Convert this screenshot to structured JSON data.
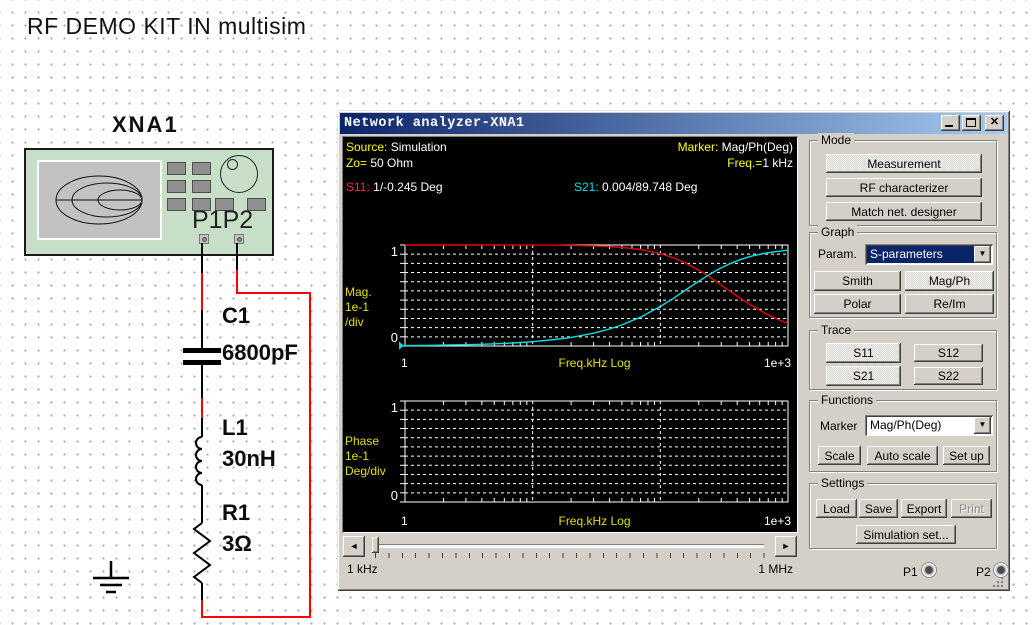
{
  "page": {
    "title": "RF DEMO KIT IN multisim"
  },
  "icons": {
    "dropdown": "▼",
    "arrow_left": "◄",
    "arrow_right": "►",
    "close": "✕"
  },
  "colors": {
    "titlebar_gradient": [
      "#0a246a",
      "#a6caf0"
    ],
    "panel_gray": "#d4d0c8",
    "info_yellow": "#ffff00",
    "axis_yellow": "#e0e000",
    "s11_red": "#ff2a2a",
    "s21_cyan": "#00e1e1",
    "wire_red": "#ff0000",
    "instrument_green": "#c7dfc7"
  },
  "schematic": {
    "instrument_ref": "XNA1",
    "ports_label": "P1P2",
    "components": [
      {
        "ref": "C1",
        "value": "6800pF"
      },
      {
        "ref": "L1",
        "value": "30nH"
      },
      {
        "ref": "R1",
        "value": "3Ω"
      }
    ]
  },
  "window": {
    "title": "Network analyzer-XNA1",
    "info": {
      "source_label": "Source:",
      "source_value": "Simulation",
      "marker_label": "Marker:",
      "marker_value": "Mag/Ph(Deg)",
      "zo_label": "Zo=",
      "zo_value": "50 Ohm",
      "freq_label": "Freq.=",
      "freq_value": "1 kHz",
      "s11_label": "S11:",
      "s11_value": "1/-0.245 Deg",
      "s21_label": "S21:",
      "s21_value": "0.004/89.748 Deg"
    },
    "mode": {
      "label": "Mode",
      "measurement": "Measurement",
      "rf": "RF characterizer",
      "match": "Match net. designer"
    },
    "graph": {
      "label": "Graph",
      "param_label": "Param.",
      "param_value": "S-parameters",
      "smith": "Smith",
      "magph": "Mag/Ph",
      "polar": "Polar",
      "reim": "Re/Im"
    },
    "trace": {
      "label": "Trace",
      "s11": "S11",
      "s12": "S12",
      "s21": "S21",
      "s22": "S22"
    },
    "functions": {
      "label": "Functions",
      "marker_label": "Marker",
      "marker_value": "Mag/Ph(Deg)",
      "scale": "Scale",
      "autoscale": "Auto scale",
      "setup": "Set up"
    },
    "settings": {
      "label": "Settings",
      "load": "Load",
      "save": "Save",
      "export": "Export",
      "print": "Print",
      "sim": "Simulation set..."
    },
    "status": {
      "start": "1 kHz",
      "stop": "1 MHz",
      "p1": "P1",
      "p2": "P2"
    }
  },
  "chart_data": [
    {
      "type": "line",
      "title": "Magnitude",
      "unit_lines": [
        "Mag.",
        "1e-1",
        "/div"
      ],
      "x_axis": {
        "label": "Freq.kHz Log",
        "min_label": "1",
        "max_label": "1e+3",
        "scale": "log",
        "range_khz": [
          1,
          1000
        ]
      },
      "y_axis": {
        "max_label": "1",
        "min_label": "0",
        "range": [
          0,
          1
        ],
        "divisions": 10
      },
      "grid": "dashed-white-on-black",
      "x_khz": [
        1,
        1.5,
        2,
        3,
        4,
        5,
        7,
        10,
        15,
        20,
        30,
        40,
        50,
        70,
        100,
        130,
        160,
        200,
        234,
        280,
        340,
        420,
        520,
        650,
        800,
        1000
      ],
      "series": [
        {
          "name": "S11",
          "color": "#e80000",
          "values": [
            1.0,
            1.0,
            1.0,
            0.9999,
            0.9998,
            0.9998,
            0.9995,
            0.9991,
            0.9979,
            0.9962,
            0.9915,
            0.9848,
            0.9766,
            0.9553,
            0.915,
            0.8683,
            0.817,
            0.7508,
            0.6966,
            0.6302,
            0.5557,
            0.4753,
            0.4003,
            0.3299,
            0.2731,
            0.2215
          ]
        },
        {
          "name": "S21",
          "color": "#00e1e1",
          "values": [
            0.0043,
            0.0064,
            0.0085,
            0.0128,
            0.0171,
            0.0214,
            0.0299,
            0.0427,
            0.064,
            0.0851,
            0.1271,
            0.1683,
            0.2086,
            0.2859,
            0.3909,
            0.4822,
            0.5591,
            0.6415,
            0.6964,
            0.7543,
            0.8072,
            0.8543,
            0.89,
            0.9169,
            0.9343,
            0.9472
          ]
        }
      ],
      "marker_point": {
        "series": "S21",
        "f_khz": 1,
        "value": 0.004,
        "color": "#00e1e1"
      }
    },
    {
      "type": "line",
      "title": "Phase",
      "unit_lines": [
        "Phase",
        "1e-1",
        "Deg/div"
      ],
      "x_axis": {
        "label": "Freq.kHz Log",
        "min_label": "1",
        "max_label": "1e+3",
        "scale": "log",
        "range_khz": [
          1,
          1000
        ]
      },
      "y_axis": {
        "max_label": "1",
        "min_label": "0",
        "range": [
          0,
          1
        ],
        "divisions": 10
      },
      "grid": "dashed-white-on-black",
      "x_khz": [],
      "series": []
    }
  ]
}
